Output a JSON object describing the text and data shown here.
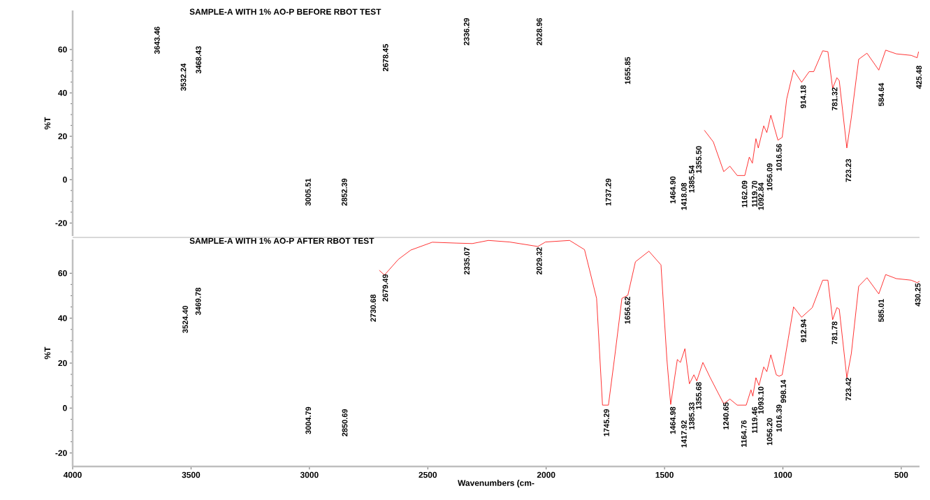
{
  "chart_data": [
    {
      "type": "line",
      "title": "SAMPLE-A WITH 1% AO-P BEFORE RBOT TEST",
      "ylabel": "%T",
      "xlim": [
        4000,
        423
      ],
      "ylim": [
        -26,
        78
      ],
      "yticks": [
        -20,
        0,
        20,
        40,
        60
      ],
      "tick_labels": "y",
      "series": [
        {
          "color": "#ff0000",
          "x": [
            1332,
            1294,
            1250,
            1224,
            1193,
            1161,
            1142,
            1129,
            1114,
            1104,
            1081,
            1068,
            1051,
            1021,
            1003,
            984,
            955,
            921,
            889,
            870,
            832,
            810,
            790,
            772,
            762,
            730,
            711,
            680,
            645,
            595,
            566,
            521,
            458,
            433,
            427
          ],
          "values": [
            22.8,
            17.4,
            3.7,
            6.2,
            1.9,
            1.9,
            10.4,
            7.6,
            18.9,
            14.6,
            24.8,
            21.7,
            29.7,
            18.2,
            19.5,
            37.2,
            50.5,
            44.9,
            49.8,
            49.8,
            59.4,
            59,
            42.1,
            47,
            45.6,
            14.6,
            28.7,
            55.5,
            58.3,
            50.5,
            59.7,
            58,
            57.3,
            56.2,
            59
          ]
        }
      ],
      "annotations": [
        "3643.46",
        "3532.24",
        "3468.43",
        "3005.51",
        "2852.39",
        "2678.45",
        "2336.29",
        "2028.96",
        "1737.29",
        "1655.85",
        "1464.90",
        "1418.08",
        "1385.54",
        "1355.50",
        "1162.09",
        "1119.70",
        "1092.84",
        "1056.09",
        {
          "text": "1016.56",
          "x": 1016.56,
          "y": 17
        },
        {
          "text": "914.18",
          "x": 914.18,
          "y": 44
        },
        {
          "text": "781.32",
          "x": 781.32,
          "y": 43
        },
        "723.23",
        "584.64",
        "425.48"
      ]
    },
    {
      "type": "line",
      "title": "SAMPLE-A WITH 1% AO-P AFTER RBOT TEST",
      "xlabel": "Wavenumbers (cm-",
      "ylabel": "%T",
      "xlim": [
        4000,
        423
      ],
      "ylim": [
        -26,
        75
      ],
      "xticks": [
        4000,
        3500,
        3000,
        2500,
        2000,
        1500,
        1000,
        500
      ],
      "yticks": [
        -20,
        0,
        20,
        40,
        60
      ],
      "series": [
        {
          "color": "#ff0000",
          "x": [
            2705,
            2683,
            2624,
            2572,
            2481,
            2377,
            2312,
            2244,
            2155,
            2035,
            2003,
            1901,
            1838,
            1787,
            1762,
            1737,
            1712,
            1680,
            1655,
            1623,
            1566,
            1515,
            1490,
            1474,
            1446,
            1433,
            1414,
            1395,
            1376,
            1364,
            1338,
            1307,
            1250,
            1224,
            1193,
            1155,
            1135,
            1127,
            1114,
            1101,
            1081,
            1068,
            1051,
            1028,
            1016,
            1003,
            977,
            955,
            921,
            876,
            832,
            810,
            790,
            772,
            762,
            730,
            711,
            680,
            645,
            595,
            566,
            521,
            458,
            433,
            423
          ],
          "values": [
            61.3,
            59.2,
            66.2,
            70.3,
            73.8,
            73.4,
            73.2,
            74.6,
            73.9,
            71.9,
            73.9,
            74.6,
            70.5,
            48.8,
            1.3,
            1.3,
            21.6,
            48.8,
            50.2,
            65.1,
            69.8,
            63.7,
            21.6,
            1.6,
            21.6,
            20.3,
            26.4,
            10.8,
            14.8,
            12.1,
            20.3,
            13.5,
            1.9,
            4,
            1.3,
            1.3,
            8.1,
            5.3,
            13.5,
            10.1,
            18.3,
            16.2,
            23.7,
            14.8,
            14.2,
            14.8,
            31.1,
            45,
            40.4,
            44.7,
            56.9,
            56.9,
            39.3,
            44.7,
            44,
            13.5,
            24.3,
            54.2,
            58,
            50.8,
            59.4,
            57.6,
            56.9,
            55.8,
            56.4
          ]
        }
      ],
      "annotations": [
        "3524.40",
        "3469.78",
        "3004.79",
        "2850.69",
        "2730.68",
        {
          "text": "2679.49",
          "x": 2679.49,
          "y": 60
        },
        {
          "text": "2335.07",
          "x": 2335.07,
          "y": 72
        },
        {
          "text": "2029.32",
          "x": 2029.32,
          "y": 72
        },
        {
          "text": "1745.29",
          "x": 1745.29,
          "y": 0
        },
        {
          "text": "1656.62",
          "x": 1656.62,
          "y": 50
        },
        {
          "text": "1464.98",
          "x": 1464.98,
          "y": 1
        },
        "1417.92",
        "1385.33",
        {
          "text": "1355.68",
          "x": 1355.68,
          "y": 12
        },
        {
          "text": "1240.65",
          "x": 1240.65,
          "y": 3
        },
        "1164.76",
        "1119.46",
        {
          "text": "1093.10",
          "x": 1093.1,
          "y": 10
        },
        "1056.20",
        "1016.39",
        "998.14",
        {
          "text": "912.94",
          "x": 912.94,
          "y": 40
        },
        {
          "text": "781.78",
          "x": 781.78,
          "y": 39
        },
        {
          "text": "723.42",
          "x": 723.42,
          "y": 14
        },
        "585.01",
        {
          "text": "430.25",
          "x": 430.25,
          "y": 56
        }
      ]
    }
  ]
}
